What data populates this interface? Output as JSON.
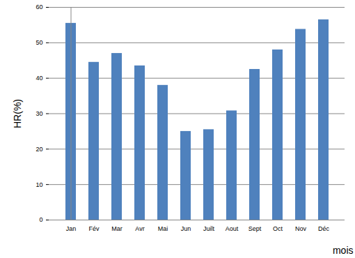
{
  "chart_data": {
    "type": "bar",
    "x_label": "mois",
    "y_label": "HR(%)",
    "categories": [
      "Jan",
      "Fév",
      "Mar",
      "Avr",
      "Mai",
      "Jun",
      "Juilt",
      "Aout",
      "Sept",
      "Oct",
      "Nov",
      "Déc"
    ],
    "values": [
      55.5,
      44.5,
      47,
      43.5,
      38,
      25,
      25.5,
      30.8,
      42.5,
      48,
      53.8,
      56.5
    ],
    "color": "#4f81bd",
    "ylim": [
      0,
      60
    ],
    "yticks": [
      0,
      10,
      20,
      30,
      40,
      50,
      60
    ],
    "grid": true
  }
}
